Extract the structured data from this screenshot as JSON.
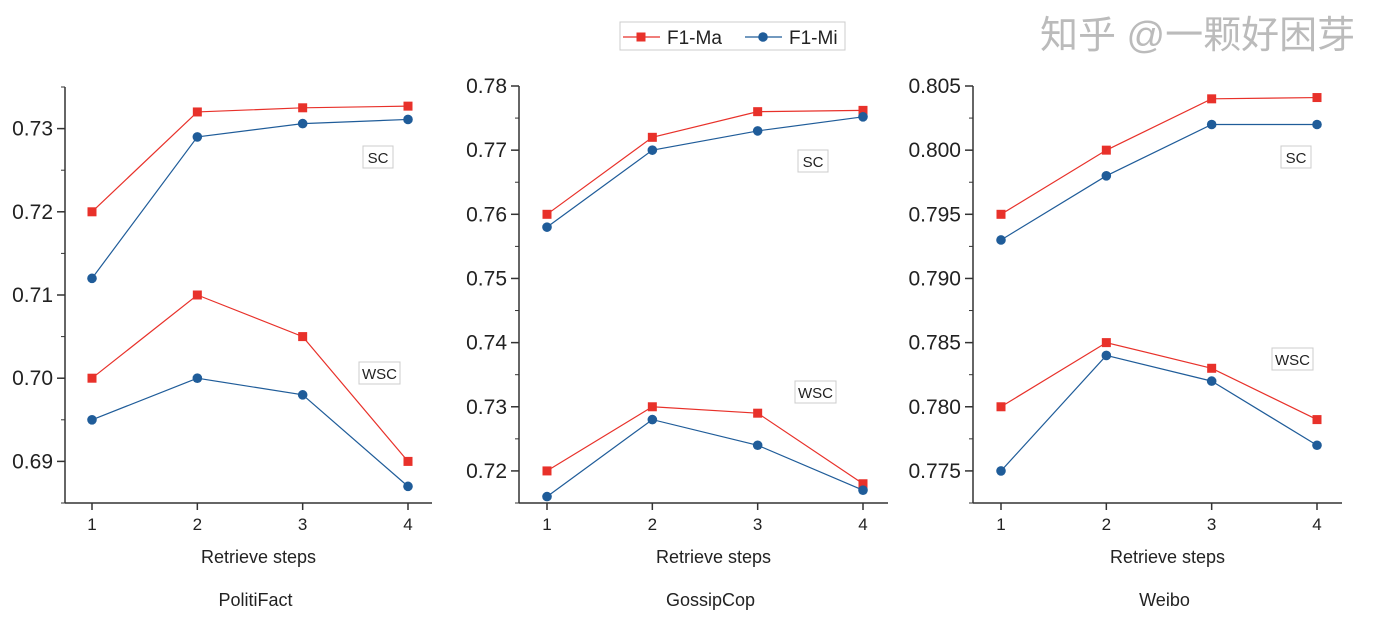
{
  "legend": {
    "placement": "top-center",
    "entries": [
      {
        "name": "F1-Ma",
        "color": "#e8312a",
        "marker": "square"
      },
      {
        "name": "F1-Mi",
        "color": "#1f5c99",
        "marker": "circle"
      }
    ]
  },
  "watermark": "知乎 @一颗好困芽",
  "chart_data": [
    {
      "type": "line",
      "title": "PolitiFact",
      "xlabel": "Retrieve steps",
      "x": [
        1,
        2,
        3,
        4
      ],
      "ylim": [
        0.685,
        0.735
      ],
      "yticks": [
        0.69,
        0.7,
        0.71,
        0.72,
        0.73
      ],
      "ytick_labels": [
        "0.69",
        "0.70",
        "0.71",
        "0.72",
        "0.73"
      ],
      "minor_step": 0.005,
      "grid": false,
      "groups": [
        {
          "label": "SC",
          "series": [
            {
              "name": "F1-Ma",
              "values": [
                0.72,
                0.732,
                0.7325,
                0.7327
              ]
            },
            {
              "name": "F1-Mi",
              "values": [
                0.712,
                0.729,
                0.7306,
                0.7311
              ]
            }
          ]
        },
        {
          "label": "WSC",
          "series": [
            {
              "name": "F1-Ma",
              "values": [
                0.7,
                0.71,
                0.705,
                0.69
              ]
            },
            {
              "name": "F1-Mi",
              "values": [
                0.695,
                0.7,
                0.698,
                0.687
              ]
            }
          ]
        }
      ]
    },
    {
      "type": "line",
      "title": "GossipCop",
      "xlabel": "Retrieve steps",
      "x": [
        1,
        2,
        3,
        4
      ],
      "ylim": [
        0.715,
        0.78
      ],
      "yticks": [
        0.72,
        0.73,
        0.74,
        0.75,
        0.76,
        0.77,
        0.78
      ],
      "ytick_labels": [
        "0.72",
        "0.73",
        "0.74",
        "0.75",
        "0.76",
        "0.77",
        "0.78"
      ],
      "minor_step": 0.005,
      "grid": false,
      "groups": [
        {
          "label": "SC",
          "series": [
            {
              "name": "F1-Ma",
              "values": [
                0.76,
                0.772,
                0.776,
                0.7762
              ]
            },
            {
              "name": "F1-Mi",
              "values": [
                0.758,
                0.77,
                0.773,
                0.7752
              ]
            }
          ]
        },
        {
          "label": "WSC",
          "series": [
            {
              "name": "F1-Ma",
              "values": [
                0.72,
                0.73,
                0.729,
                0.718
              ]
            },
            {
              "name": "F1-Mi",
              "values": [
                0.716,
                0.728,
                0.724,
                0.717
              ]
            }
          ]
        }
      ]
    },
    {
      "type": "line",
      "title": "Weibo",
      "xlabel": "Retrieve steps",
      "x": [
        1,
        2,
        3,
        4
      ],
      "ylim": [
        0.7725,
        0.805
      ],
      "yticks": [
        0.775,
        0.78,
        0.785,
        0.79,
        0.795,
        0.8,
        0.805
      ],
      "ytick_labels": [
        "0.775",
        "0.780",
        "0.785",
        "0.790",
        "0.795",
        "0.800",
        "0.805"
      ],
      "minor_step": 0.0025,
      "grid": false,
      "groups": [
        {
          "label": "SC",
          "series": [
            {
              "name": "F1-Ma",
              "values": [
                0.795,
                0.8,
                0.804,
                0.8041
              ]
            },
            {
              "name": "F1-Mi",
              "values": [
                0.793,
                0.798,
                0.802,
                0.802
              ]
            }
          ]
        },
        {
          "label": "WSC",
          "series": [
            {
              "name": "F1-Ma",
              "values": [
                0.78,
                0.785,
                0.783,
                0.779
              ]
            },
            {
              "name": "F1-Mi",
              "values": [
                0.775,
                0.784,
                0.782,
                0.777
              ]
            }
          ]
        }
      ]
    }
  ]
}
